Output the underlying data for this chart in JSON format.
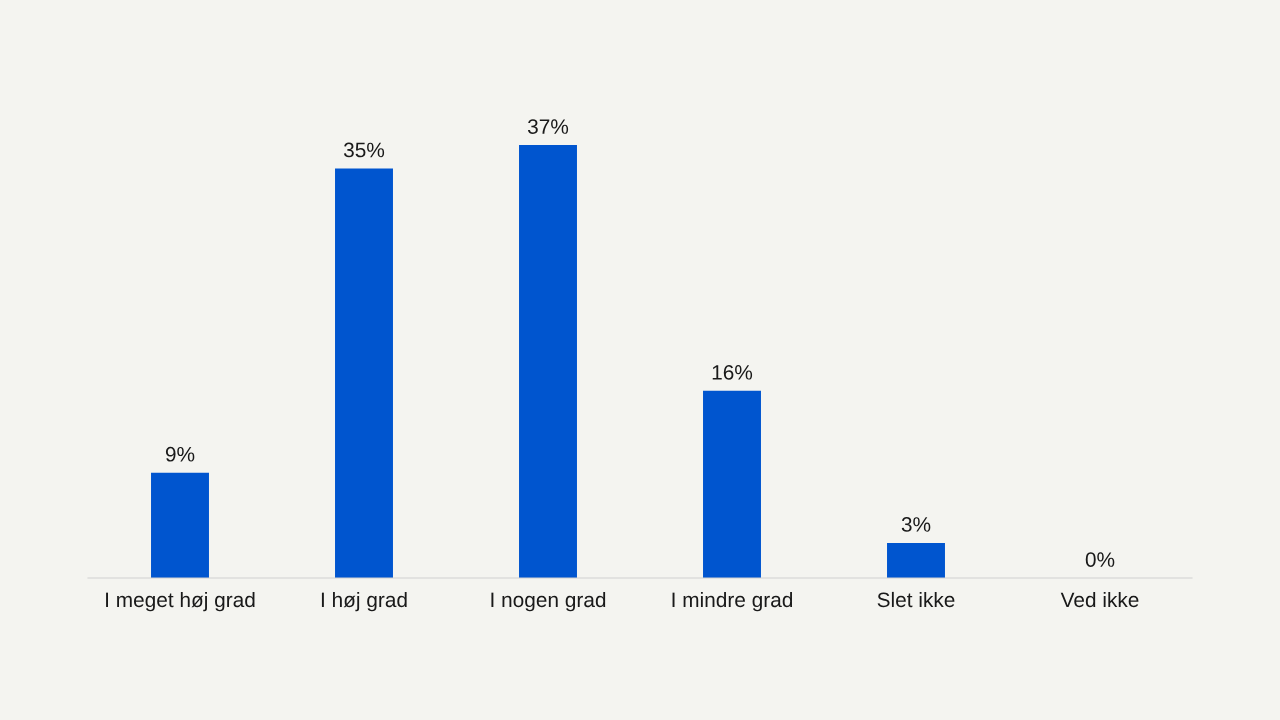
{
  "chart_data": {
    "type": "bar",
    "categories": [
      "I meget høj grad",
      "I høj grad",
      "I nogen grad",
      "I mindre grad",
      "Slet ikke",
      "Ved ikke"
    ],
    "values": [
      9,
      35,
      37,
      16,
      3,
      0
    ],
    "value_labels": [
      "9%",
      "35%",
      "37%",
      "16%",
      "3%",
      "0%"
    ],
    "color": "#0055cf",
    "grid": false
  }
}
